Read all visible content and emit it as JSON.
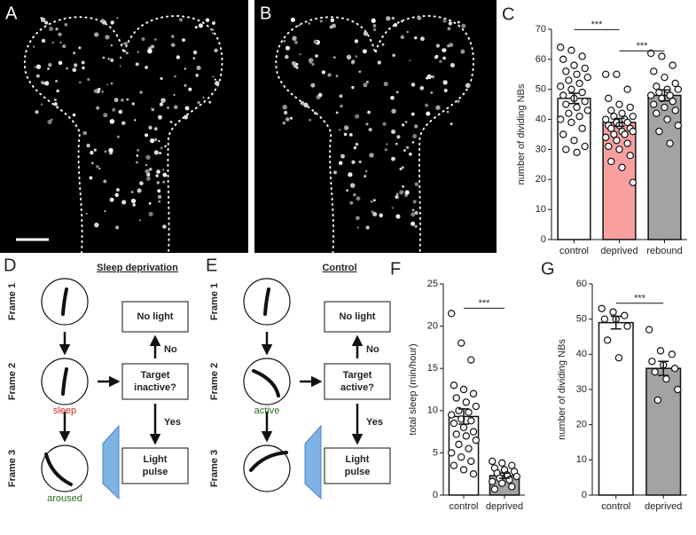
{
  "panel_labels": [
    "A",
    "B",
    "C",
    "D",
    "E",
    "F",
    "G"
  ],
  "diagrams": [
    {
      "title": "Sleep deprivation",
      "frames": [
        "Frame 1",
        "Frame 2",
        "Frame 3"
      ],
      "frame2_state": "sleep",
      "frame3_state": "aroused",
      "box_top": "No light",
      "box_mid": [
        "Target",
        "inactive?"
      ],
      "box_bottom": [
        "Light",
        "pulse"
      ],
      "no": "No",
      "yes": "Yes"
    },
    {
      "title": "Control",
      "frames": [
        "Frame 1",
        "Frame 2",
        "Frame 3"
      ],
      "frame2_state": "active",
      "box_top": "No light",
      "box_mid": [
        "Target",
        "active?"
      ],
      "box_bottom": [
        "Light",
        "pulse"
      ],
      "no": "No",
      "yes": "Yes"
    }
  ],
  "chart_data": [
    {
      "type": "bar",
      "ylabel": "number of dividing NBs",
      "categories": [
        "control",
        "deprived",
        "rebound"
      ],
      "values": [
        47,
        39,
        48
      ],
      "errors": [
        1.7,
        1.3,
        1.8
      ],
      "colors": [
        "#ffffff",
        "#f8a0a0",
        "#a3a3a3"
      ],
      "points": [
        [
          64,
          63,
          61,
          60,
          58,
          57,
          56,
          55,
          54,
          53,
          52,
          51,
          50,
          49,
          48,
          47,
          46,
          45,
          44,
          43,
          42,
          41,
          40,
          39,
          37,
          35,
          33,
          31,
          30,
          29
        ],
        [
          55,
          55,
          50,
          47,
          45,
          44,
          43,
          42,
          41,
          41,
          40,
          40,
          39,
          39,
          38,
          38,
          37,
          37,
          36,
          36,
          35,
          35,
          34,
          33,
          32,
          31,
          30,
          28,
          26,
          24,
          19
        ],
        [
          62,
          61,
          58,
          56,
          54,
          52,
          51,
          50,
          50,
          49,
          48,
          48,
          47,
          46,
          45,
          44,
          43,
          42,
          40,
          38,
          36,
          32
        ]
      ],
      "significance": [
        {
          "label": "***",
          "between": [
            "control",
            "deprived"
          ]
        },
        {
          "label": "***",
          "between": [
            "deprived",
            "rebound"
          ]
        }
      ],
      "ylim": [
        0,
        70
      ],
      "yticks": [
        0,
        10,
        20,
        30,
        40,
        50,
        60,
        70
      ]
    },
    {
      "type": "bar",
      "ylabel": "total sleep (min/hour)",
      "categories": [
        "control",
        "deprived"
      ],
      "values": [
        9.3,
        2.3
      ],
      "errors": [
        0.9,
        0.3
      ],
      "colors": [
        "#ffffff",
        "#a3a3a3"
      ],
      "points": [
        [
          21.5,
          18,
          16,
          13,
          12.5,
          12,
          11.5,
          11,
          10.5,
          10,
          9.8,
          9.5,
          9,
          8.8,
          8.5,
          8,
          7.5,
          7.2,
          7,
          6.5,
          6,
          5.5,
          5,
          4.5,
          4,
          3.5,
          3,
          2.5
        ],
        [
          4,
          3.8,
          3.5,
          3.2,
          3,
          2.8,
          2.6,
          2.4,
          2.2,
          2,
          1.8,
          1.6,
          1.4,
          1,
          0.7
        ]
      ],
      "significance": [
        {
          "label": "***",
          "between": [
            "control",
            "deprived"
          ]
        }
      ],
      "ylim": [
        0,
        25
      ],
      "yticks": [
        0,
        5,
        10,
        15,
        20,
        25
      ]
    },
    {
      "type": "bar",
      "ylabel": "number of dividing NBs",
      "categories": [
        "control",
        "deprived"
      ],
      "values": [
        49,
        36
      ],
      "errors": [
        1.8,
        2
      ],
      "colors": [
        "#ffffff",
        "#a3a3a3"
      ],
      "points": [
        [
          53,
          52,
          51,
          50,
          50,
          48,
          44,
          39
        ],
        [
          47,
          41,
          40,
          38,
          37,
          36,
          35,
          33,
          30,
          27
        ]
      ],
      "significance": [
        {
          "label": "***",
          "between": [
            "control",
            "deprived"
          ]
        }
      ],
      "ylim": [
        0,
        60
      ],
      "yticks": [
        0,
        10,
        20,
        30,
        40,
        50,
        60
      ]
    }
  ]
}
